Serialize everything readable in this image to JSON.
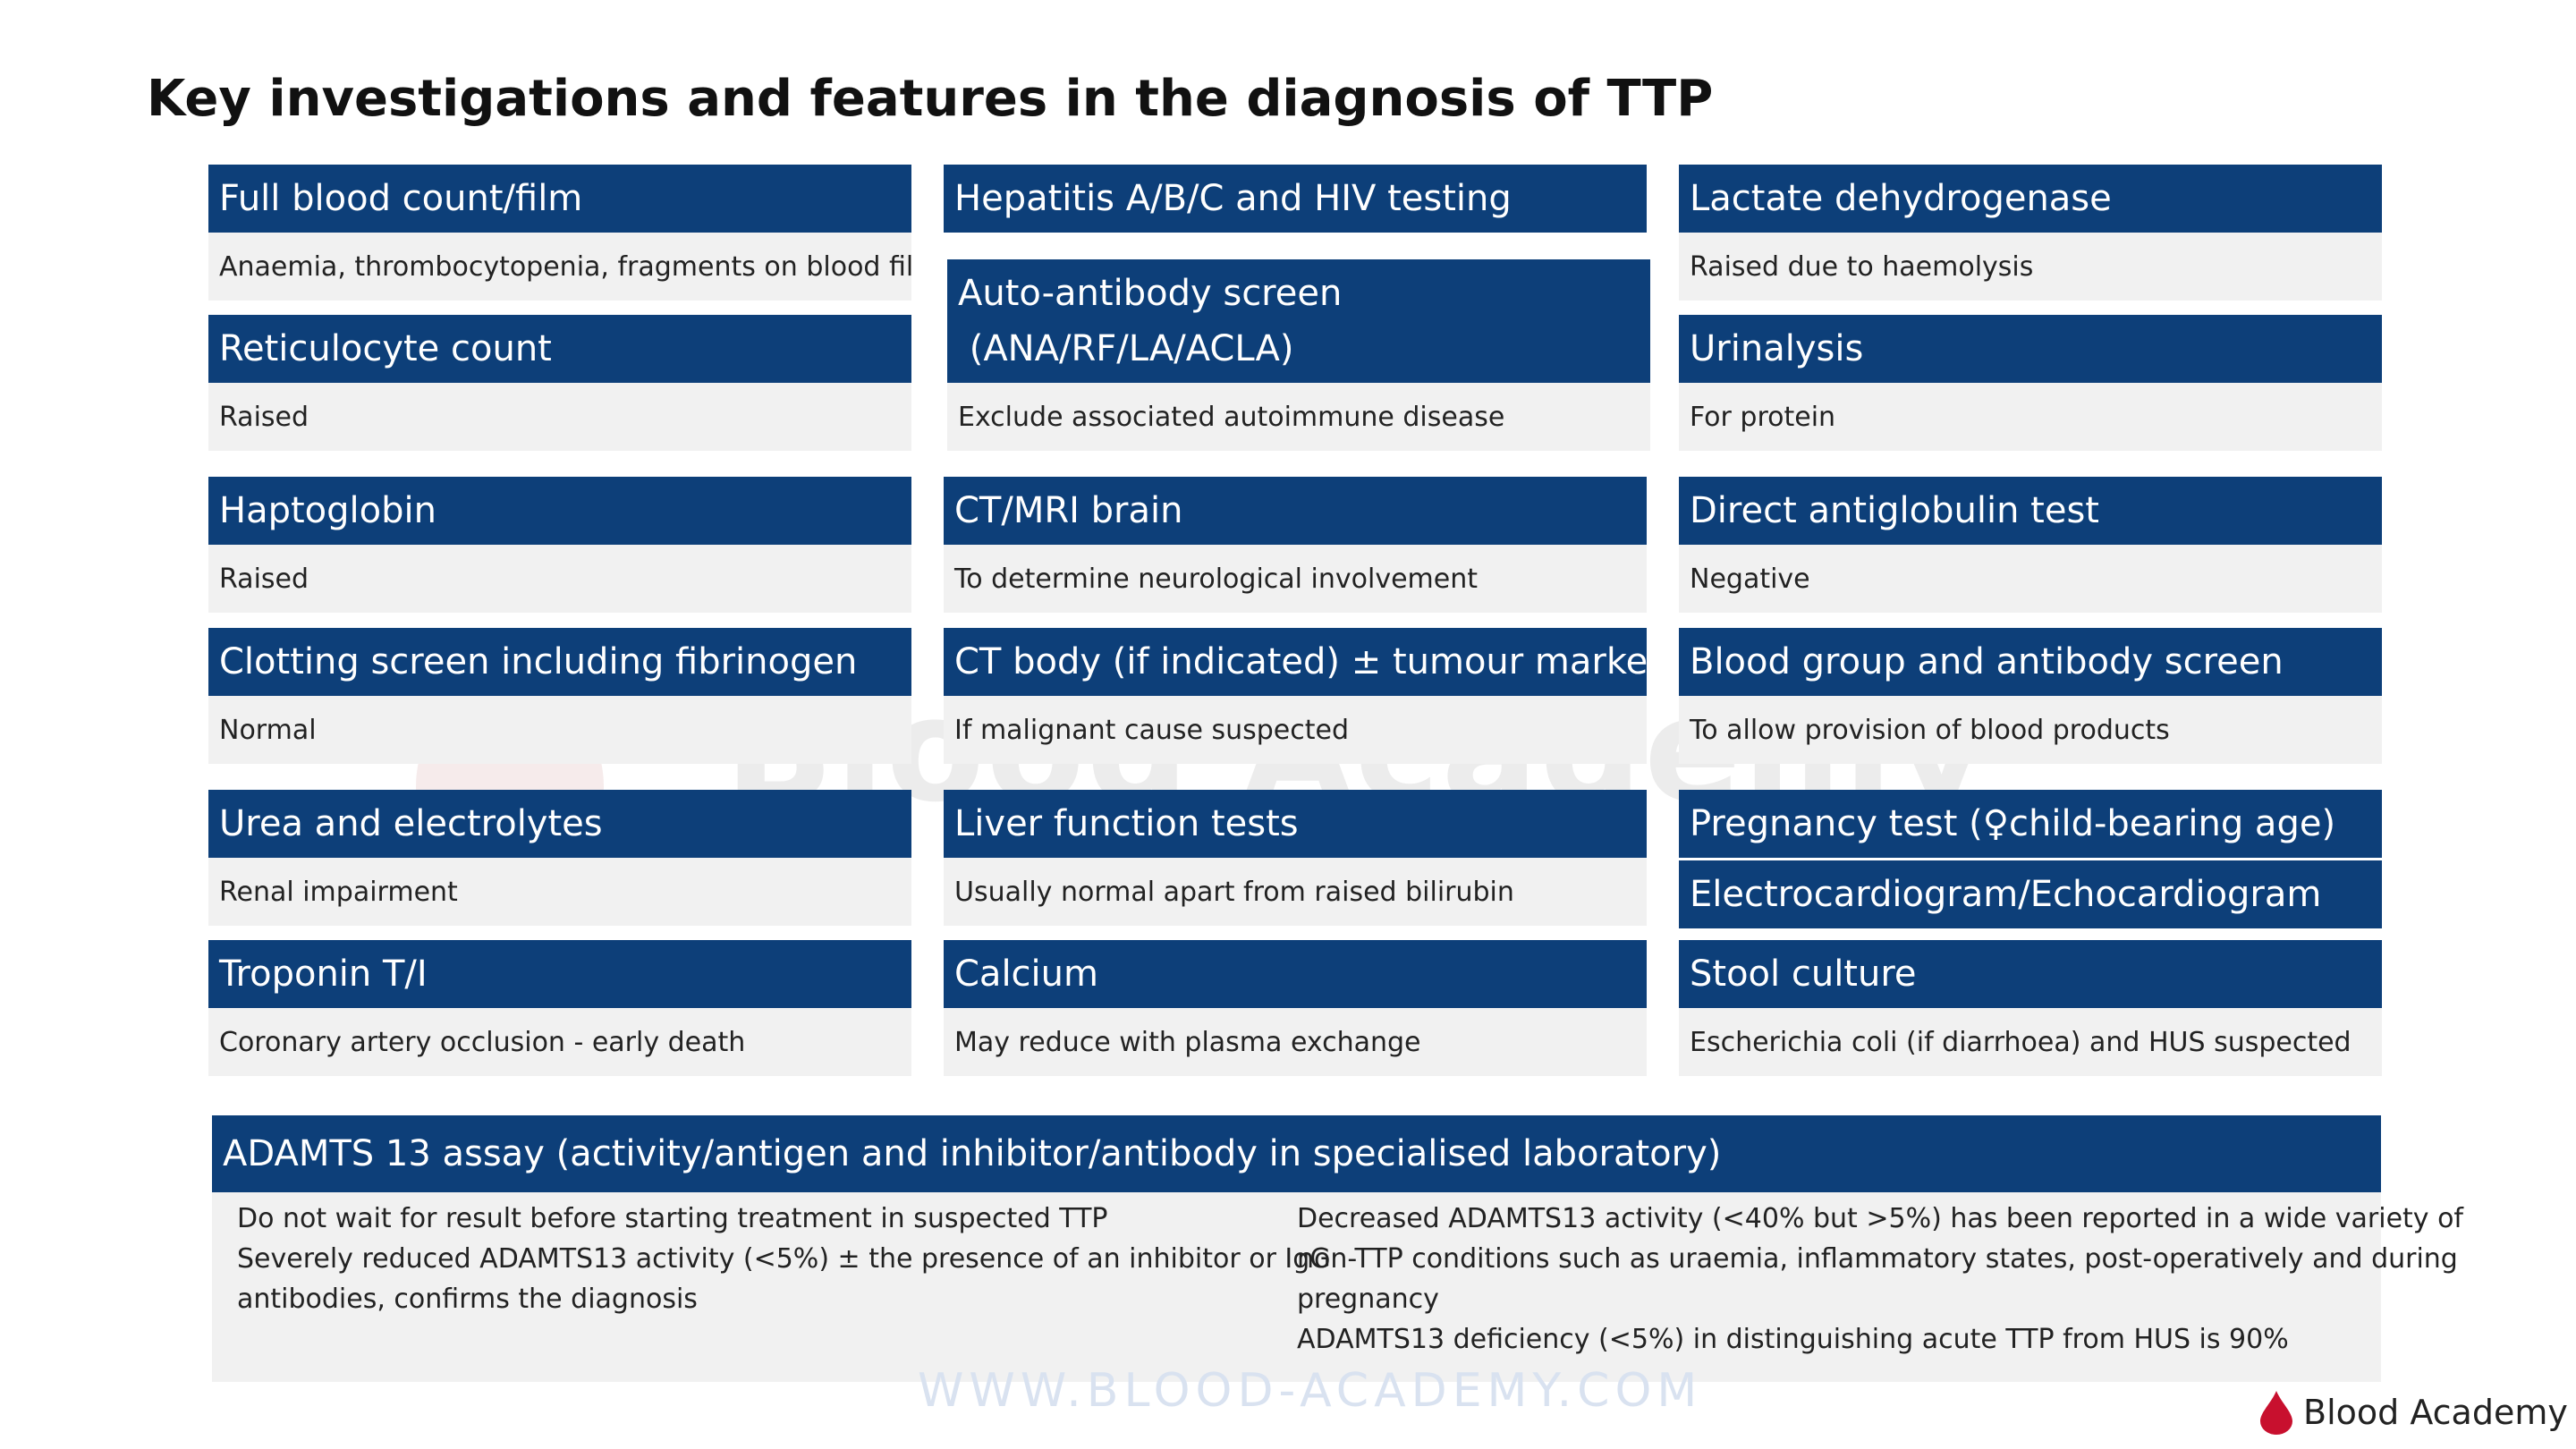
{
  "title": "Key investigations and features in the diagnosis of TTP",
  "watermark": "Blood Academy",
  "footer_url": "WWW.BLOOD-ACADEMY.COM",
  "logo_text": "Blood Academy",
  "colors": {
    "header": "#0d3f79",
    "body": "#f1f1f1",
    "logo_drop": "#c8102e"
  },
  "col1": {
    "full_blood_count": {
      "heading": "Full blood count/film",
      "detail": "Anaemia, thrombocytopenia, fragments on blood film"
    },
    "reticulocyte": {
      "heading": "Reticulocyte count",
      "detail": "Raised"
    },
    "haptoglobin": {
      "heading": "Haptoglobin",
      "detail": "Raised"
    },
    "clotting": {
      "heading": "Clotting screen including fibrinogen",
      "detail": "Normal"
    },
    "urea": {
      "heading": "Urea and electrolytes",
      "detail": "Renal impairment"
    },
    "troponin": {
      "heading": "Troponin T/I",
      "detail": "Coronary artery occlusion - early death"
    }
  },
  "col2": {
    "hepatitis": {
      "heading": "Hepatitis A/B/C and HIV testing"
    },
    "autoantibody": {
      "heading_line1": "Auto-antibody screen",
      "heading_line2": " (ANA/RF/LA/ACLA)",
      "detail": "Exclude associated autoimmune disease"
    },
    "ct_mri": {
      "heading": "CT/MRI brain",
      "detail": "To determine neurological involvement"
    },
    "ct_body": {
      "heading": "CT body (if indicated) ± tumour markers",
      "detail": "If malignant cause suspected"
    },
    "liver": {
      "heading": "Liver function tests",
      "detail": "Usually normal apart from raised bilirubin"
    },
    "calcium": {
      "heading": "Calcium",
      "detail": "May reduce with plasma exchange"
    }
  },
  "col3": {
    "ldh": {
      "heading": "Lactate dehydrogenase",
      "detail": "Raised due to haemolysis"
    },
    "urinalysis": {
      "heading": "Urinalysis",
      "detail": "For protein"
    },
    "dat": {
      "heading": "Direct antiglobulin test",
      "detail": "Negative"
    },
    "blood_group": {
      "heading": "Blood group and antibody screen",
      "detail": "To allow provision of blood products"
    },
    "pregnancy": {
      "heading": "Pregnancy test (♀child-bearing age)"
    },
    "ecg": {
      "heading": "Electrocardiogram/Echocardiogram"
    },
    "stool": {
      "heading": "Stool culture",
      "detail": "Escherichia coli (if diarrhoea) and HUS suspected"
    }
  },
  "adamts": {
    "heading": "ADAMTS 13 assay (activity/antigen and inhibitor/antibody in specialised laboratory)",
    "left_lines": [
      "Do not wait for result before starting treatment in suspected TTP",
      "Severely reduced ADAMTS13 activity (<5%) ± the presence of an inhibitor or IgG",
      "antibodies, confirms the diagnosis"
    ],
    "right_lines": [
      "Decreased ADAMTS13 activity (<40% but >5%) has been reported in a wide variety of",
      "non-TTP conditions such as uraemia, inflammatory states, post-operatively and during",
      "pregnancy",
      "ADAMTS13 deficiency (<5%) in distinguishing acute TTP from HUS is 90%"
    ]
  }
}
